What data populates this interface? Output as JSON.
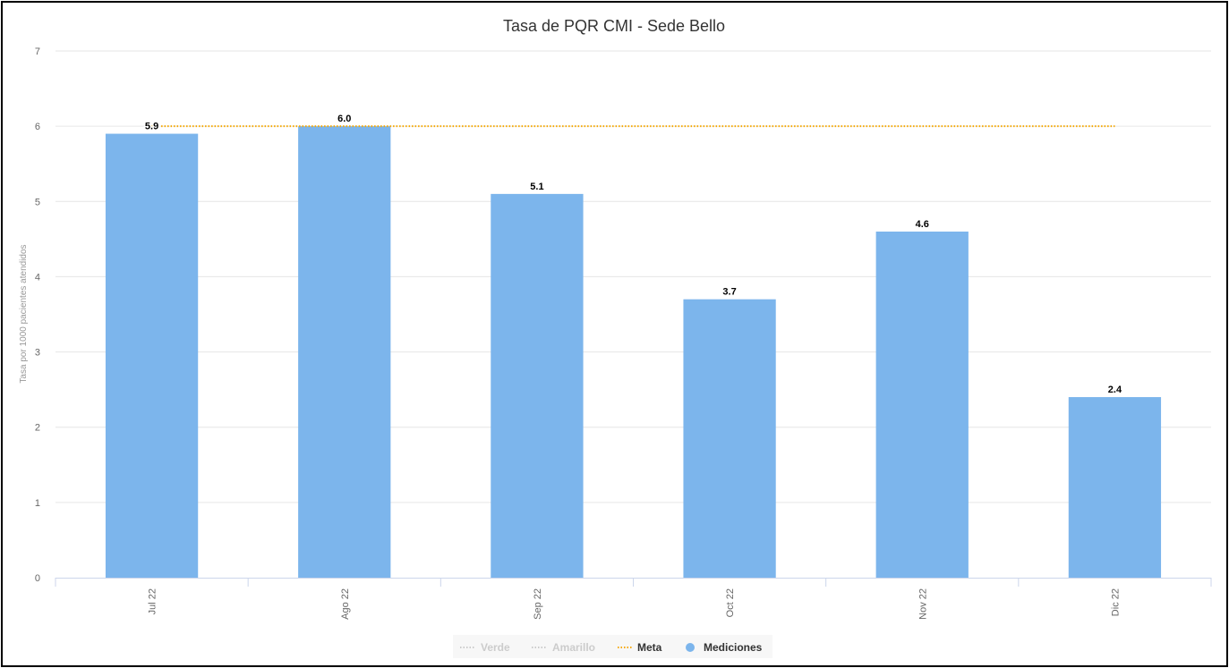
{
  "chart_data": {
    "type": "bar",
    "title": "Tasa de PQR CMI - Sede Bello",
    "xlabel": "",
    "ylabel": "Tasa por 1000 pacientes atendidos",
    "categories": [
      "Jul 22",
      "Ago 22",
      "Sep 22",
      "Oct 22",
      "Nov 22",
      "Dic 22"
    ],
    "ylim": [
      0,
      7
    ],
    "yticks": [
      "0",
      "1",
      "2",
      "3",
      "4",
      "5",
      "6",
      "7"
    ],
    "grid": true,
    "legend_position": "bottom-center",
    "series": [
      {
        "name": "Mediciones",
        "type": "bar",
        "color": "#7cb5ec",
        "values": [
          5.9,
          6.0,
          5.1,
          3.7,
          4.6,
          2.4
        ],
        "labels": [
          "5.9",
          "6.0",
          "5.1",
          "3.7",
          "4.6",
          "2.4"
        ]
      },
      {
        "name": "Meta",
        "type": "line",
        "style": "dotted",
        "color": "#f7a800",
        "values": [
          6,
          6,
          6,
          6,
          6,
          6
        ]
      }
    ],
    "legend": [
      {
        "name": "Verde",
        "marker": "dotted-line",
        "color": "#cccccc",
        "hidden": true
      },
      {
        "name": "Amarillo",
        "marker": "dotted-line",
        "color": "#cccccc",
        "hidden": true
      },
      {
        "name": "Meta",
        "marker": "dotted-line",
        "color": "#f7a800",
        "hidden": false
      },
      {
        "name": "Mediciones",
        "marker": "circle",
        "color": "#7cb5ec",
        "hidden": false
      }
    ]
  }
}
